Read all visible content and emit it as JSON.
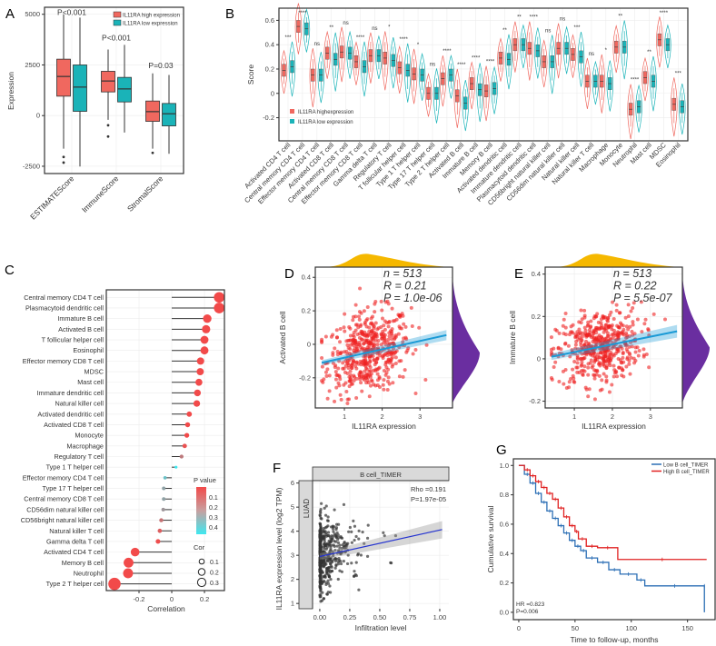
{
  "colors": {
    "high": "#f0685f",
    "low": "#1ab3b8",
    "scatter": "#ee2222",
    "fit": "#1a9ad6",
    "marg_top": "#f5b800",
    "marg_right": "#6a2ea0",
    "km_low": "#2c6fb5",
    "km_high": "#e02020",
    "pval_low": "#f24a4a",
    "pval_high": "#3ee8f0",
    "stat_red": "#e0303a"
  },
  "chart_data": [
    {
      "panel": "A",
      "type": "box",
      "ylabel": "Expression",
      "yticks": [
        -2500,
        0,
        2500,
        5000
      ],
      "ylim": [
        -2860,
        5346
      ],
      "legend": [
        "IL11RA high expression",
        "IL11RA low expression"
      ],
      "legend_placement": "top-right",
      "categories": [
        "ESTIMATEScore",
        "ImmuneScore",
        "StromalScore"
      ],
      "pvalues": [
        "P<0.001",
        "P<0.001",
        "P=0.03"
      ],
      "series": [
        {
          "name": "IL11RA high expression",
          "boxes": [
            {
              "min": -1632,
              "q1": 958,
              "median": 1931,
              "q3": 2784,
              "max": 5000,
              "outliers": [
                -2040,
                -2320
              ]
            },
            {
              "min": -210,
              "q1": 1168,
              "median": 1707,
              "q3": 2186,
              "max": 3263,
              "outliers": [
                -479,
                -1033
              ]
            },
            {
              "min": -1632,
              "q1": -284,
              "median": 195,
              "q3": 719,
              "max": 2081,
              "outliers": [
                -1841
              ]
            }
          ]
        },
        {
          "name": "IL11RA low expression",
          "boxes": [
            {
              "min": -2515,
              "q1": 210,
              "median": 1407,
              "q3": 2500,
              "max": 4835,
              "outliers": []
            },
            {
              "min": -838,
              "q1": 674,
              "median": 1317,
              "q3": 1886,
              "max": 3488,
              "outliers": []
            },
            {
              "min": -1886,
              "q1": -509,
              "median": 90,
              "q3": 599,
              "max": 2006,
              "outliers": []
            }
          ]
        }
      ]
    },
    {
      "panel": "B",
      "type": "violin",
      "ylabel": "Score",
      "yticks": [
        -0.2,
        0.0,
        0.2,
        0.4,
        0.6
      ],
      "ylim": [
        -0.39,
        0.7
      ],
      "legend": [
        "IL11RA highexpression",
        "IL11RA low expression"
      ],
      "legend_placement": "bottom-left",
      "categories": [
        "Activated CD4 T cell",
        "Central memory CD4 T cell",
        "Effector memory CD4 T cell",
        "Activated CD8 T cell",
        "Central memory CD8 T cell",
        "Effector memory CD8 T cell",
        "Gamma delta T cell",
        "Regulatory T cell",
        "T follicular helper cell",
        "Type 1 T helper cell",
        "Type 17 T helper cell",
        "Type 2 T helper cell",
        "Activated B cell",
        "Immature B cell",
        "Memory B cell",
        "Activated dendritic cell",
        "Immature dendritic cell",
        "Plasmacytoid dendritic cell",
        "CD56bright natural killer cell",
        "CD56dim natural killer cell",
        "Natural killer cell",
        "Natural killer T cell",
        "Macrophage",
        "Monocyte",
        "Neutrophil",
        "Mast cell",
        "MDSC",
        "Eosinophil"
      ],
      "significance": [
        "***",
        "****",
        "ns",
        "**",
        "ns",
        "****",
        "ns",
        "*",
        "****",
        "*",
        "ns",
        "****",
        "****",
        "****",
        "****",
        "**",
        "**",
        "****",
        "ns",
        "ns",
        "***",
        "ns",
        "*",
        "**",
        "****",
        "**",
        "****",
        "***"
      ],
      "series": [
        {
          "name": "IL11RA highexpression",
          "medians": [
            0.19,
            0.55,
            0.15,
            0.33,
            0.34,
            0.26,
            0.31,
            0.29,
            0.21,
            0.16,
            0.0,
            0.12,
            -0.02,
            0.08,
            0.02,
            0.29,
            0.4,
            0.37,
            0.26,
            0.37,
            0.32,
            0.1,
            0.1,
            0.38,
            -0.13,
            0.13,
            0.44,
            -0.09
          ]
        },
        {
          "name": "IL11RA low expression",
          "medians": [
            0.22,
            0.53,
            0.15,
            0.28,
            0.33,
            0.22,
            0.31,
            0.27,
            0.19,
            0.15,
            0.0,
            0.15,
            -0.08,
            0.03,
            0.04,
            0.28,
            0.4,
            0.35,
            0.26,
            0.37,
            0.3,
            0.1,
            0.08,
            0.38,
            -0.11,
            0.1,
            0.4,
            -0.11
          ]
        }
      ]
    },
    {
      "panel": "C",
      "type": "lollipop",
      "xlabel": "Correlation",
      "xticks": [
        -0.2,
        0.0,
        0.2
      ],
      "xlim": [
        -0.4,
        0.322
      ],
      "legend_color_title": "P value",
      "legend_color_ticks": [
        "0.1",
        "0.2",
        "0.3",
        "0.4"
      ],
      "legend_size_title": "Cor",
      "legend_size_ticks": [
        "0.1",
        "0.2",
        "0.3"
      ],
      "categories": [
        "Central memory CD4 T cell",
        "Plasmacytoid dendritic cell",
        "Immature B cell",
        "Activated B cell",
        "T follicular helper cell",
        "Eosinophil",
        "Effector memory CD8 T cell",
        "MDSC",
        "Mast cell",
        "Immature dendritic cell",
        "Natural killer cell",
        "Activated dendritic cell",
        "Activated CD8 T cell",
        "Monocyte",
        "Macrophage",
        "Regulatory T cell",
        "Type 1 T helper cell",
        "Effector memory CD4 T cell",
        "Type 17 T helper cell",
        "Central memory CD8 T cell",
        "CD56dim natural killer cell",
        "CD56bright natural killer cell",
        "Natural killer T cell",
        "Gamma delta T cell",
        "Activated CD4 T cell",
        "Memory B cell",
        "Neutrophil",
        "Type 2 T helper cell"
      ],
      "values": [
        0.29,
        0.29,
        0.217,
        0.21,
        0.2,
        0.2,
        0.176,
        0.174,
        0.166,
        0.157,
        0.153,
        0.107,
        0.097,
        0.092,
        0.079,
        0.06,
        0.026,
        -0.041,
        -0.049,
        -0.049,
        -0.052,
        -0.064,
        -0.073,
        -0.084,
        -0.224,
        -0.264,
        -0.267,
        -0.35
      ],
      "p_values": [
        0.0,
        0.0,
        0.0,
        0.0,
        0.0,
        0.0,
        0.0,
        0.0,
        0.0,
        0.0,
        0.0,
        0.01,
        0.03,
        0.04,
        0.07,
        0.17,
        0.45,
        0.35,
        0.27,
        0.27,
        0.24,
        0.15,
        0.1,
        0.06,
        0.0,
        0.0,
        0.0,
        0.0
      ]
    },
    {
      "panel": "D",
      "type": "scatter",
      "xlabel": "IL11RA expression",
      "ylabel": "Activated B cell",
      "xticks": [
        1,
        2,
        3
      ],
      "yticks": [
        -0.2,
        0.0,
        0.2,
        0.4
      ],
      "xlim": [
        0.23,
        3.86
      ],
      "ylim": [
        -0.38,
        0.461
      ],
      "stats": [
        "n = 513",
        "R = 0.21",
        "P = 1.0e-06"
      ],
      "n": 513,
      "fit": {
        "x": [
          0.4,
          3.7
        ],
        "y": [
          -0.11,
          0.055
        ]
      }
    },
    {
      "panel": "E",
      "type": "scatter",
      "xlabel": "IL11RA expression",
      "ylabel": "Immature B cell",
      "xticks": [
        1,
        2,
        3
      ],
      "yticks": [
        -0.2,
        0.0,
        0.2,
        0.4
      ],
      "xlim": [
        0.234,
        3.84
      ],
      "ylim": [
        -0.232,
        0.433
      ],
      "stats": [
        "n = 513",
        "R = 0.22",
        "P = 5.5e-07"
      ],
      "n": 513,
      "fit": {
        "x": [
          0.4,
          3.7
        ],
        "y": [
          0.01,
          0.13
        ]
      }
    },
    {
      "panel": "F",
      "type": "scatter",
      "strip_top": "B cell_TIMER",
      "strip_left": "LUAD",
      "xlabel": "Infiltration level",
      "ylabel": "IL11RA expression level (log2 TPM)",
      "xticks": [
        "0.00",
        "0.25",
        "0.50",
        "0.75",
        "1.00"
      ],
      "yticks": [
        1,
        2,
        3,
        4,
        5,
        6
      ],
      "xlim": [
        -0.06,
        1.076
      ],
      "ylim": [
        0.78,
        6.1
      ],
      "stats": [
        "Rho =0.191",
        "P=1.97e-05"
      ],
      "fit": {
        "x": [
          0.0,
          1.02
        ],
        "y": [
          2.95,
          4.07
        ]
      }
    },
    {
      "panel": "G",
      "type": "line",
      "xlabel": "Time to follow-up, months",
      "ylabel": "Cumulative survival",
      "xticks": [
        0,
        50,
        100,
        150
      ],
      "yticks": [
        "0.0",
        "0.2",
        "0.4",
        "0.6",
        "0.8",
        "1.0"
      ],
      "xlim": [
        -4.8,
        174.5
      ],
      "ylim": [
        -0.05,
        1.045
      ],
      "legend_placement": "top-right",
      "stats": [
        "HR =0.823",
        "P=0.006"
      ],
      "series": [
        {
          "name": "Low B cell_TIMER",
          "x": [
            0,
            5,
            10,
            15,
            20,
            25,
            30,
            35,
            40,
            45,
            50,
            55,
            60,
            70,
            80,
            90,
            105,
            112,
            165,
            165
          ],
          "y": [
            1,
            0.94,
            0.88,
            0.81,
            0.75,
            0.69,
            0.64,
            0.59,
            0.54,
            0.49,
            0.45,
            0.42,
            0.37,
            0.34,
            0.29,
            0.26,
            0.22,
            0.18,
            0.18,
            0.0
          ]
        },
        {
          "name": "High B cell_TIMER",
          "x": [
            0,
            5,
            10,
            15,
            20,
            25,
            30,
            35,
            40,
            45,
            50,
            53,
            60,
            70,
            88,
            88,
            167
          ],
          "y": [
            1,
            0.97,
            0.93,
            0.89,
            0.85,
            0.81,
            0.77,
            0.71,
            0.65,
            0.59,
            0.55,
            0.5,
            0.45,
            0.44,
            0.43,
            0.36,
            0.36
          ]
        }
      ]
    }
  ],
  "panel_labels": [
    "A",
    "B",
    "C",
    "D",
    "E",
    "F",
    "G"
  ]
}
